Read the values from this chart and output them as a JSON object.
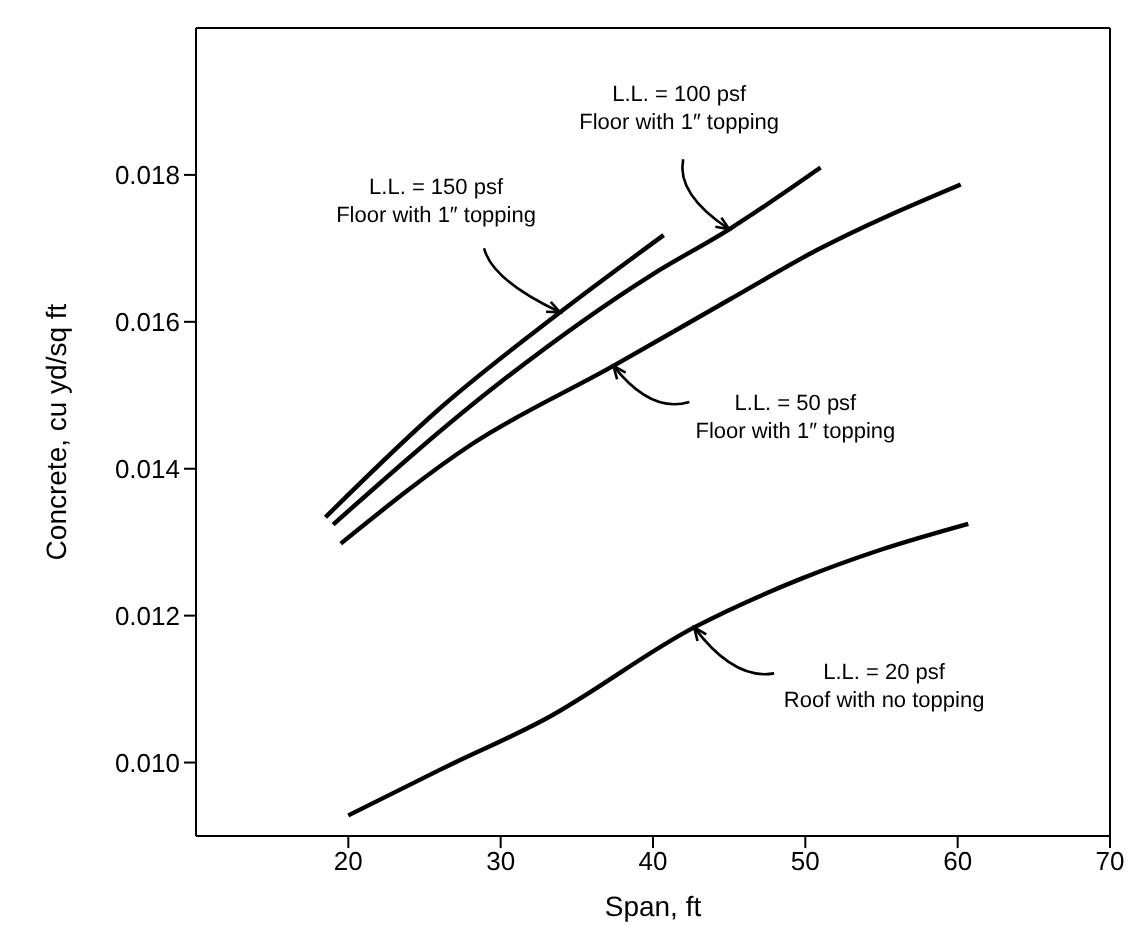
{
  "chart_data": {
    "type": "line",
    "xlabel": "Span, ft",
    "ylabel": "Concrete, cu yd/sq ft",
    "xlim": [
      10,
      70
    ],
    "xticks": [
      20,
      30,
      40,
      50,
      60,
      70
    ],
    "ylim": [
      0.009,
      0.02
    ],
    "yticks": [
      {
        "value": 0.01,
        "label": "0.010"
      },
      {
        "value": 0.012,
        "label": "0.012"
      },
      {
        "value": 0.014,
        "label": "0.014"
      },
      {
        "value": 0.016,
        "label": "0.016"
      },
      {
        "value": 0.018,
        "label": "0.018"
      }
    ],
    "marker": "none",
    "line_style": "solid",
    "series": [
      {
        "color": "#000000",
        "x": [
          18.5,
          26,
          33.9,
          40.7
        ],
        "values": [
          0.01334,
          0.01482,
          0.01613,
          0.01718
        ]
      },
      {
        "color": "#000000",
        "x": [
          19,
          30,
          40,
          45,
          51
        ],
        "values": [
          0.01324,
          0.01518,
          0.01665,
          0.01726,
          0.0181
        ]
      },
      {
        "color": "#000000",
        "x": [
          19.5,
          28,
          37.4,
          45,
          50.7,
          60.2
        ],
        "values": [
          0.01298,
          0.01432,
          0.0154,
          0.0163,
          0.01697,
          0.01787
        ]
      },
      {
        "color": "#000000",
        "x": [
          20,
          26,
          33,
          42.7,
          49.7,
          55,
          60.7
        ],
        "values": [
          0.00928,
          0.0099,
          0.0106,
          0.01184,
          0.0125,
          0.0129,
          0.01325
        ]
      }
    ],
    "annotations": [
      {
        "text": "L.L. = 150 psf\nFloor with 1″ topping",
        "x": 33.9,
        "y": 0.01613
      },
      {
        "text": "L.L. = 100 psf\nFloor with 1″ topping",
        "x": 45,
        "y": 0.01726
      },
      {
        "text": "L.L. = 50 psf\nFloor with 1″ topping",
        "x": 37.4,
        "y": 0.0154
      },
      {
        "text": "L.L. = 20 psf\nRoof with no topping",
        "x": 42.7,
        "y": 0.01184
      }
    ]
  }
}
